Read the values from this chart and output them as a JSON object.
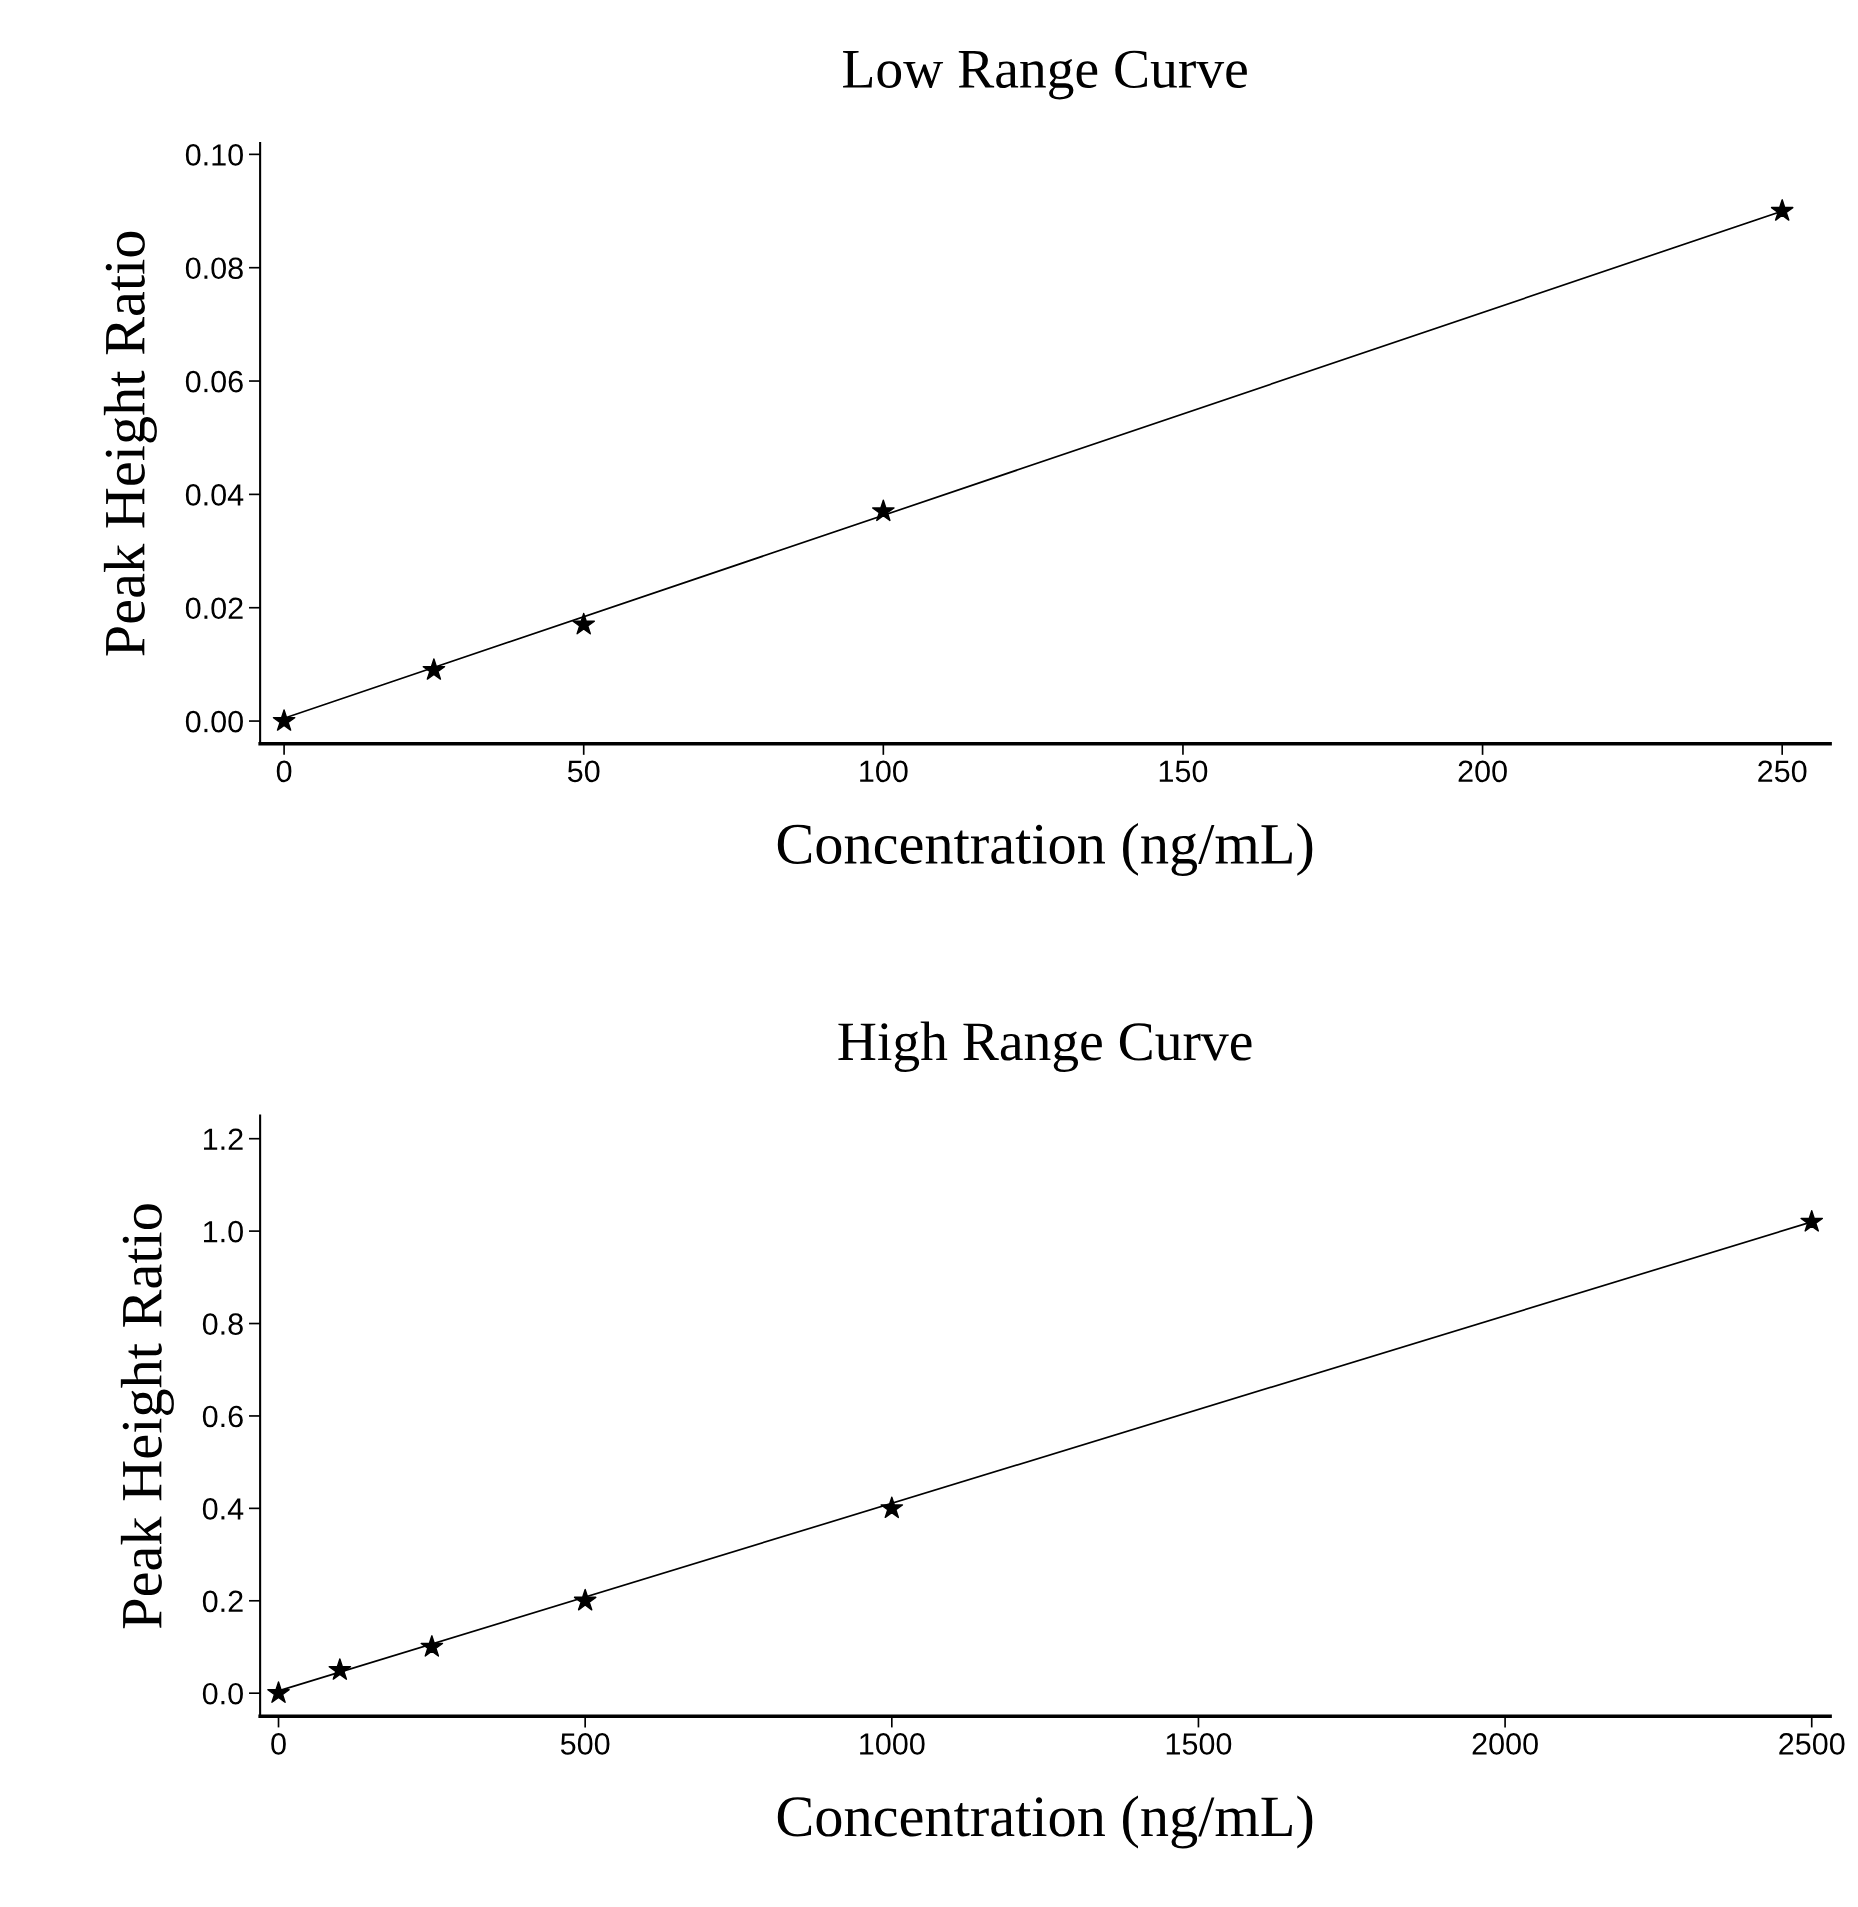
{
  "chart_data": [
    {
      "type": "scatter",
      "title": "Low Range Curve",
      "xlabel": "Concentration (ng/mL)",
      "ylabel": "Peak Height Ratio",
      "grid": false,
      "legend": false,
      "xlim": [
        -4,
        258
      ],
      "xticks": [
        0,
        50,
        100,
        150,
        200,
        250
      ],
      "ylim": [
        -0.004,
        0.102
      ],
      "yticks": [
        {
          "value": 0,
          "label": "0.00"
        },
        {
          "value": 0.02,
          "label": "0.02"
        },
        {
          "value": 0.04,
          "label": "0.04"
        },
        {
          "value": 0.06,
          "label": "0.06"
        },
        {
          "value": 0.08,
          "label": "0.08"
        },
        {
          "value": 0.1,
          "label": "0.10"
        }
      ],
      "series": [
        {
          "marker": "star",
          "color": "#000000",
          "x": [
            0,
            25,
            50,
            100,
            250
          ],
          "values": [
            0.0,
            0.009,
            0.017,
            0.037,
            0.09
          ]
        },
        {
          "type": "line",
          "marker": "none",
          "color": "#000000",
          "x": [
            0,
            250
          ],
          "values": [
            0.0005,
            0.09
          ]
        }
      ]
    },
    {
      "type": "scatter",
      "title": "High Range Curve",
      "xlabel": "Concentration (ng/mL)",
      "ylabel": "Peak Height Ratio",
      "grid": false,
      "legend": false,
      "xlim": [
        -30,
        2530
      ],
      "xticks": [
        0,
        500,
        1000,
        1500,
        2000,
        2500
      ],
      "ylim": [
        -0.05,
        1.25
      ],
      "yticks": [
        {
          "value": 0,
          "label": "0.0"
        },
        {
          "value": 0.2,
          "label": "0.2"
        },
        {
          "value": 0.4,
          "label": "0.4"
        },
        {
          "value": 0.6,
          "label": "0.6"
        },
        {
          "value": 0.8,
          "label": "0.8"
        },
        {
          "value": 1.0,
          "label": "1.0"
        },
        {
          "value": 1.2,
          "label": "1.2"
        }
      ],
      "series": [
        {
          "marker": "star",
          "color": "#000000",
          "x": [
            0,
            100,
            250,
            500,
            1000,
            2500
          ],
          "values": [
            0.0,
            0.05,
            0.1,
            0.2,
            0.4,
            1.02
          ]
        },
        {
          "type": "line",
          "marker": "none",
          "color": "#000000",
          "x": [
            0,
            2500
          ],
          "values": [
            0.005,
            1.02
          ]
        }
      ]
    }
  ]
}
